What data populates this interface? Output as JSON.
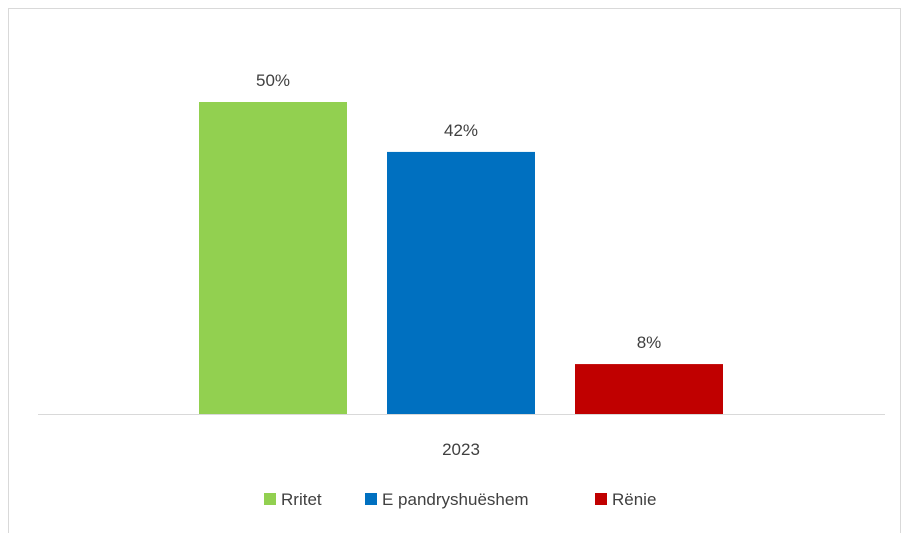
{
  "chart_data": {
    "type": "bar",
    "categories": [
      "2023"
    ],
    "series": [
      {
        "name": "Rritet",
        "values": [
          50
        ],
        "label": "50%",
        "color": "#92d050"
      },
      {
        "name": "E pandryshuëshem",
        "values": [
          42
        ],
        "label": "42%",
        "color": "#0070c0"
      },
      {
        "name": "Rënie",
        "values": [
          8
        ],
        "label": "8%",
        "color": "#c00000"
      }
    ],
    "title": "",
    "xlabel": "",
    "ylabel": "",
    "ylim": [
      0,
      55
    ],
    "unit": "%",
    "grid": false,
    "legend_position": "bottom"
  }
}
